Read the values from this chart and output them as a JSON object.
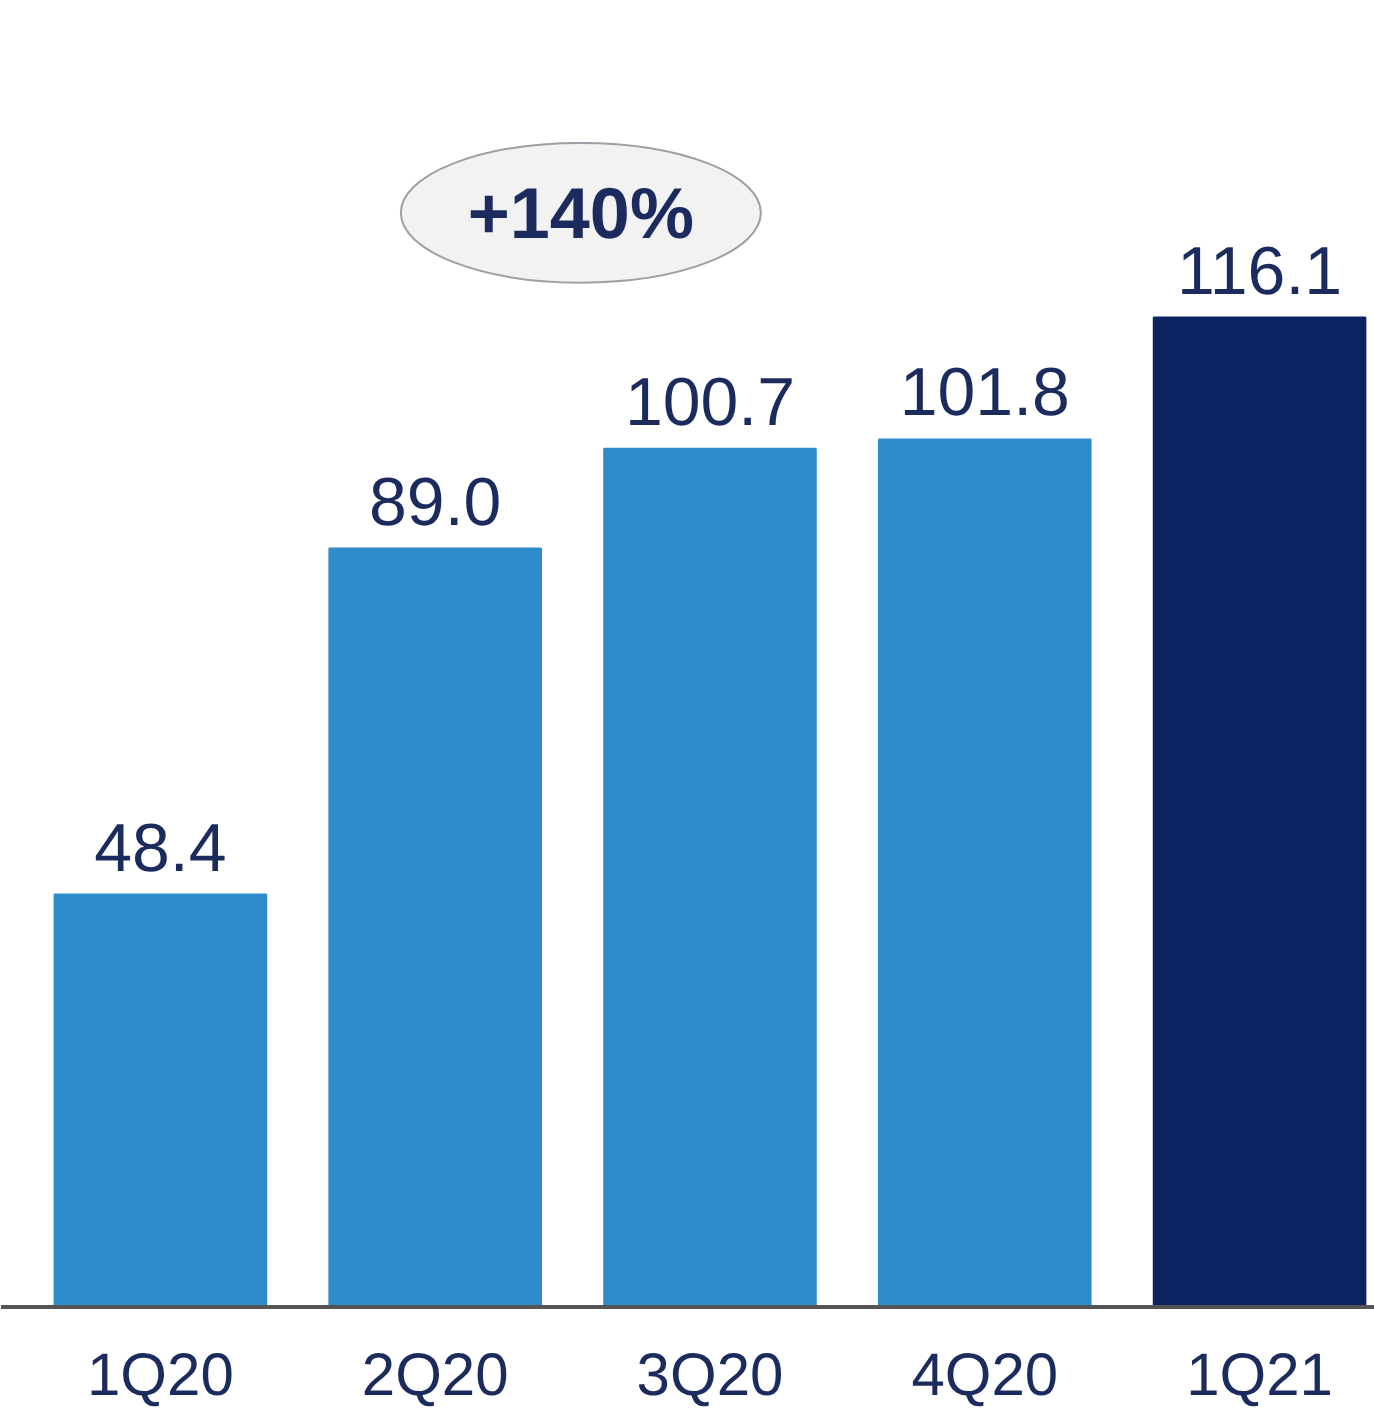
{
  "chart_data": {
    "type": "bar",
    "categories": [
      "1Q20",
      "2Q20",
      "3Q20",
      "4Q20",
      "1Q21"
    ],
    "values": [
      48.4,
      89.0,
      100.7,
      101.8,
      116.1
    ],
    "colors": [
      "#2e8bcc",
      "#2e8bcc",
      "#2e8bcc",
      "#2e8bcc",
      "#0b2361"
    ],
    "value_labels": [
      "48.4",
      "89.0",
      "100.7",
      "101.8",
      "116.1"
    ],
    "annotations": [
      "+140%"
    ]
  }
}
